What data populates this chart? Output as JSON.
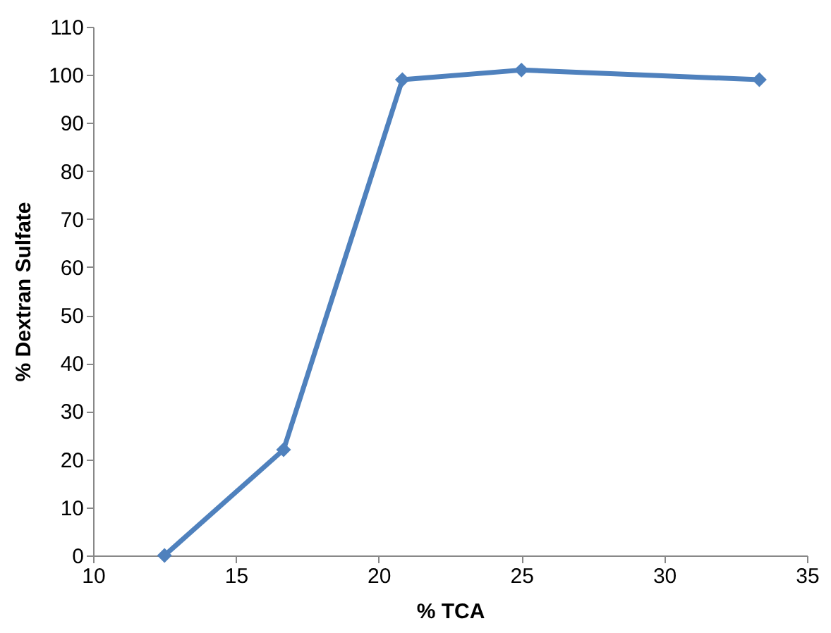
{
  "chart_data": {
    "type": "line",
    "xlabel": "% TCA",
    "ylabel": "% Dextran Sulfate",
    "x": [
      12.5,
      16.67,
      20.83,
      25,
      33.33
    ],
    "series": [
      {
        "color": "#4f81bd",
        "values": [
          0,
          22,
          99,
          101,
          99
        ]
      }
    ],
    "xlim": [
      10,
      35
    ],
    "xticks": [
      10,
      15,
      20,
      25,
      30,
      35
    ],
    "ylim": [
      0,
      110
    ],
    "yticks": [
      0,
      10,
      20,
      30,
      40,
      50,
      60,
      70,
      80,
      90,
      100,
      110
    ],
    "marker": "diamond",
    "line_style": "solid"
  }
}
